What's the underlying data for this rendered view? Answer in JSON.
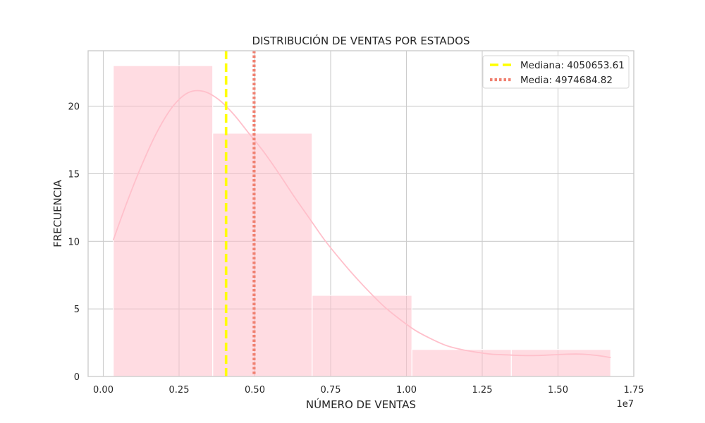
{
  "chart_data": {
    "type": "bar",
    "title": "DISTRIBUCIÓN DE VENTAS POR ESTADOS",
    "xlabel": "NÚMERO DE VENTAS",
    "ylabel": "FRECUENCIA",
    "x_offset_label": "1e7",
    "xlim": [
      -0.05,
      1.75
    ],
    "ylim": [
      0,
      24.1
    ],
    "x_tick_values": [
      0.0,
      0.25,
      0.5,
      0.75,
      1.0,
      1.25,
      1.5,
      1.75
    ],
    "x_tick_labels": [
      "0.00",
      "0.25",
      "0.50",
      "0.75",
      "1.00",
      "1.25",
      "1.50",
      "1.75"
    ],
    "y_tick_values": [
      0,
      5,
      10,
      15,
      20
    ],
    "y_tick_labels": [
      "0",
      "5",
      "10",
      "15",
      "20"
    ],
    "grid": true,
    "bins": [
      {
        "x0": 0.033,
        "x1": 0.361,
        "count": 23
      },
      {
        "x0": 0.361,
        "x1": 0.689,
        "count": 18
      },
      {
        "x0": 0.689,
        "x1": 1.018,
        "count": 6
      },
      {
        "x0": 1.018,
        "x1": 1.346,
        "count": 2
      },
      {
        "x0": 1.346,
        "x1": 1.674,
        "count": 2
      }
    ],
    "bar_color": "#ffc0cb",
    "kde": {
      "x": [
        0.033,
        0.08,
        0.13,
        0.18,
        0.23,
        0.28,
        0.33,
        0.38,
        0.43,
        0.48,
        0.53,
        0.58,
        0.63,
        0.68,
        0.73,
        0.78,
        0.83,
        0.88,
        0.93,
        0.98,
        1.03,
        1.08,
        1.13,
        1.18,
        1.23,
        1.28,
        1.33,
        1.38,
        1.43,
        1.48,
        1.53,
        1.58,
        1.63,
        1.674
      ],
      "y": [
        10.1,
        13.0,
        15.8,
        18.2,
        20.0,
        21.0,
        21.1,
        20.5,
        19.4,
        18.0,
        16.6,
        15.0,
        13.3,
        11.7,
        10.1,
        8.7,
        7.4,
        6.2,
        5.1,
        4.2,
        3.4,
        2.8,
        2.3,
        2.0,
        1.8,
        1.65,
        1.6,
        1.55,
        1.55,
        1.6,
        1.65,
        1.65,
        1.55,
        1.4
      ],
      "color": "#ffc0cb"
    },
    "lines": [
      {
        "label": "Mediana: 4050653.61",
        "x": 0.405065361,
        "style": "dashed",
        "color": "#ffff00"
      },
      {
        "label": "Media: 4974684.82",
        "x": 0.497468482,
        "style": "dotted",
        "color": "#f08070"
      }
    ],
    "legend_position": "top-right"
  }
}
